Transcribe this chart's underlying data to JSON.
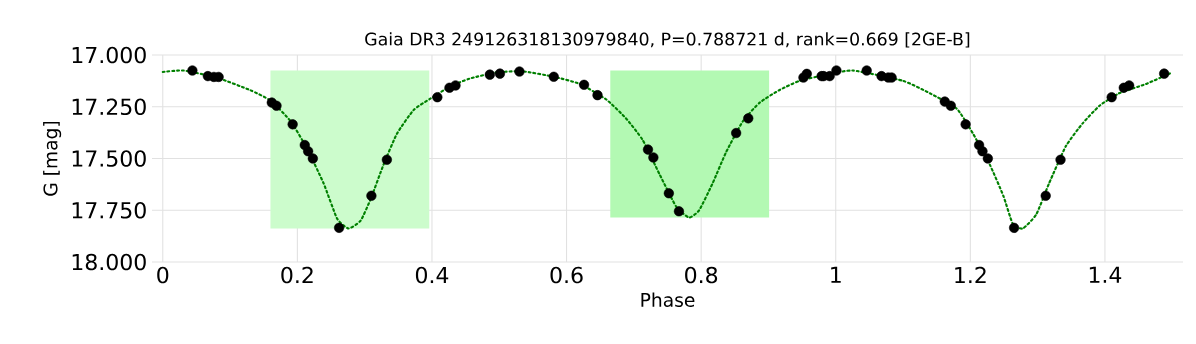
{
  "chart_data": {
    "type": "scatter",
    "title": "Gaia DR3 249126318130979840, P=0.788721 d, rank=0.669 [2GE-B]",
    "xlabel": "Phase",
    "ylabel": "G [mag]",
    "xlim": [
      -0.016,
      1.516
    ],
    "ylim": [
      18,
      17
    ],
    "xticks": [
      0,
      0.2,
      0.4,
      0.6,
      0.8,
      1,
      1.2,
      1.4
    ],
    "yticks": [
      {
        "value": 17,
        "label": "17.000"
      },
      {
        "value": 17.25,
        "label": "17.250"
      },
      {
        "value": 17.5,
        "label": "17.500"
      },
      {
        "value": 17.75,
        "label": "17.750"
      },
      {
        "value": 18,
        "label": "18.000"
      }
    ],
    "grid": true,
    "bands": [
      {
        "axis": "x",
        "from": 0.16,
        "to": 0.396,
        "color": "#ccfccc"
      },
      {
        "axis": "x",
        "from": 0.665,
        "to": 0.901,
        "color": "#b3f9b3"
      }
    ],
    "series": [
      {
        "type": "line",
        "color": "#008000",
        "line_style": "dotted",
        "marker": "none",
        "x": [
          0,
          0.031,
          0.081,
          0.13,
          0.16,
          0.19,
          0.214,
          0.239,
          0.259,
          0.276,
          0.294,
          0.309,
          0.328,
          0.348,
          0.373,
          0.397,
          0.427,
          0.456,
          0.496,
          0.535,
          0.581,
          0.62,
          0.659,
          0.688,
          0.713,
          0.738,
          0.763,
          0.782,
          0.797,
          0.817,
          0.837,
          0.862,
          0.887,
          0.916,
          0.946,
          0.986,
          1.026,
          1.1,
          1.14,
          1.18,
          1.204,
          1.229,
          1.249,
          1.263,
          1.278,
          1.298,
          1.317,
          1.342,
          1.367,
          1.392,
          1.421,
          1.461,
          1.498
        ],
        "values": [
          17.082,
          17.075,
          17.11,
          17.17,
          17.22,
          17.32,
          17.45,
          17.62,
          17.79,
          17.838,
          17.8,
          17.695,
          17.53,
          17.38,
          17.265,
          17.212,
          17.152,
          17.114,
          17.084,
          17.079,
          17.105,
          17.14,
          17.215,
          17.305,
          17.41,
          17.575,
          17.733,
          17.785,
          17.75,
          17.62,
          17.47,
          17.32,
          17.23,
          17.17,
          17.125,
          17.095,
          17.075,
          17.125,
          17.185,
          17.26,
          17.38,
          17.53,
          17.68,
          17.815,
          17.838,
          17.77,
          17.62,
          17.44,
          17.33,
          17.245,
          17.185,
          17.14,
          17.087
        ]
      },
      {
        "color": "#000000",
        "marker": "circle",
        "x": [
          0.044,
          0.067,
          0.076,
          0.083,
          0.162,
          0.169,
          0.193,
          0.211,
          0.216,
          0.223,
          0.262,
          0.31,
          0.333,
          0.408,
          0.426,
          0.435,
          0.486,
          0.501,
          0.53,
          0.581,
          0.626,
          0.646,
          0.721,
          0.729,
          0.752,
          0.767,
          0.852,
          0.87,
          0.952,
          0.957,
          0.979,
          0.982,
          0.991,
          1.001,
          1.046,
          1.068,
          1.078,
          1.083,
          1.162,
          1.171,
          1.193,
          1.213,
          1.218,
          1.226,
          1.265,
          1.312,
          1.334,
          1.41,
          1.428,
          1.436,
          1.488
        ],
        "values": [
          17.075,
          17.102,
          17.106,
          17.106,
          17.23,
          17.245,
          17.335,
          17.435,
          17.465,
          17.5,
          17.835,
          17.68,
          17.506,
          17.204,
          17.158,
          17.147,
          17.095,
          17.09,
          17.08,
          17.105,
          17.144,
          17.194,
          17.457,
          17.495,
          17.668,
          17.755,
          17.377,
          17.306,
          17.109,
          17.091,
          17.102,
          17.102,
          17.102,
          17.075,
          17.075,
          17.102,
          17.109,
          17.109,
          17.225,
          17.245,
          17.335,
          17.435,
          17.465,
          17.5,
          17.835,
          17.68,
          17.506,
          17.204,
          17.158,
          17.147,
          17.09
        ]
      }
    ]
  }
}
